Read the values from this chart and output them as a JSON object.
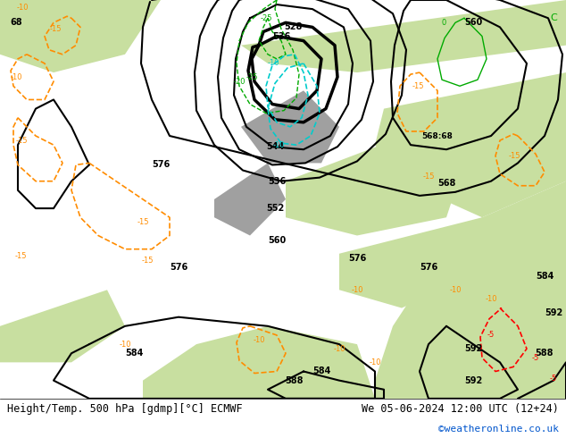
{
  "title_left": "Height/Temp. 500 hPa [gdmp][°C] ECMWF",
  "title_right": "We 05-06-2024 12:00 UTC (12+24)",
  "copyright": "©weatheronline.co.uk",
  "bg_color": "#e8e8e8",
  "land_color_light": "#c8dfa0",
  "land_color_medium": "#b8d080",
  "sea_color": "#d8d8d8",
  "footer_bg": "#ffffff",
  "text_color": "#000000",
  "geopotential_color": "#000000",
  "temp_negative_color": "#ff8c00",
  "temp_positive_color": "#ff0000",
  "temp_zero_color": "#00aa00",
  "temp_cyan_color": "#00cccc",
  "geopotential_linewidth": 2.0,
  "temp_linewidth": 1.2,
  "figsize": [
    6.34,
    4.9
  ],
  "dpi": 100
}
